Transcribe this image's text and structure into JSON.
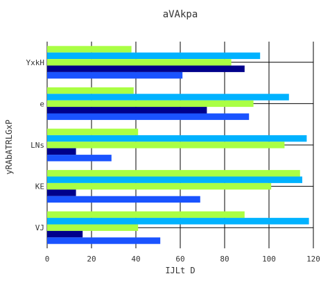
{
  "chart_data": {
    "type": "bar",
    "orientation": "horizontal",
    "title": "aVAkpa",
    "xlabel": "IJLt  D",
    "ylabel": "yRAbATRLGxP",
    "xlim": [
      0,
      120
    ],
    "xticks": [
      0,
      20,
      40,
      60,
      80,
      100,
      120
    ],
    "grid": true,
    "legend": "none",
    "categories": [
      "YxkH",
      "e",
      "LNs",
      "KE",
      "VJ"
    ],
    "series": [
      {
        "color": "#aaff44",
        "values": [
          38,
          39,
          41,
          114,
          89
        ]
      },
      {
        "color": "#00b2ff",
        "values": [
          96,
          109,
          117,
          115,
          118
        ]
      },
      {
        "color": "#aaff44",
        "values": [
          83,
          93,
          107,
          101,
          41
        ]
      },
      {
        "color": "#00008b",
        "values": [
          89,
          72,
          13,
          13,
          16
        ]
      },
      {
        "color": "#1a53ff",
        "values": [
          61,
          91,
          29,
          69,
          51
        ]
      }
    ]
  }
}
